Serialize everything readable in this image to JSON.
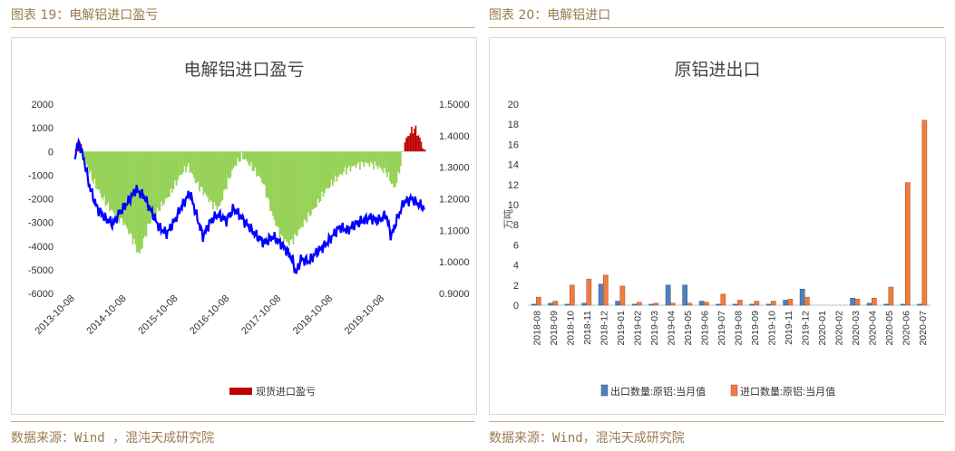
{
  "left": {
    "figure_title": "图表 19：电解铝进口盈亏",
    "source": "数据来源：Wind ，混沌天成研究院"
  },
  "right": {
    "figure_title": "图表 20：电解铝进口",
    "source": "数据来源：Wind，混沌天成研究院"
  },
  "colors": {
    "area_green": "#92d050",
    "area_red": "#c00000",
    "line_blue": "#0000ff",
    "export_blue": "#4f81bd",
    "import_orange": "#f07b3f",
    "header_gold": "#9a7b4f"
  },
  "chart_data": [
    {
      "type": "area",
      "title": "电解铝进口盈亏",
      "ylim": [
        -6000,
        2000
      ],
      "y_ticks": [
        "2000",
        "1000",
        "0",
        "-1000",
        "-2000",
        "-3000",
        "-4000",
        "-5000",
        "-6000"
      ],
      "y2lim": [
        0.9,
        1.5
      ],
      "y2_ticks": [
        "1.5000",
        "1.4000",
        "1.3000",
        "1.2000",
        "1.1000",
        "1.0000",
        "0.9000"
      ],
      "x_ticks": [
        "2013-10-08",
        "2014-10-08",
        "2015-10-08",
        "2016-10-08",
        "2017-10-08",
        "2018-10-08",
        "2019-10-08"
      ],
      "legend": [
        "现货进口盈亏"
      ],
      "legend_position": "bottom",
      "series": [
        {
          "name": "现货进口盈亏",
          "axis": "left",
          "t": [
            2013.77,
            2013.85,
            2013.95,
            2014.1,
            2014.3,
            2014.5,
            2014.7,
            2014.9,
            2015.0,
            2015.2,
            2015.4,
            2015.6,
            2015.8,
            2015.95,
            2016.1,
            2016.25,
            2016.4,
            2016.55,
            2016.7,
            2016.85,
            2017.0,
            2017.2,
            2017.4,
            2017.6,
            2017.75,
            2017.9,
            2018.0,
            2018.2,
            2018.4,
            2018.6,
            2018.8,
            2019.0,
            2019.2,
            2019.4,
            2019.6,
            2019.8,
            2019.95,
            2020.05,
            2020.15,
            2020.25,
            2020.35,
            2020.45,
            2020.55
          ],
          "values": [
            200,
            300,
            -400,
            -1200,
            -2000,
            -2600,
            -3000,
            -3800,
            -4400,
            -3000,
            -2400,
            -1800,
            -1000,
            -600,
            -1300,
            -1700,
            -2200,
            -2400,
            -1400,
            -600,
            -200,
            -700,
            -1300,
            -2800,
            -3600,
            -3900,
            -3700,
            -3000,
            -2400,
            -1700,
            -1200,
            -800,
            -600,
            -500,
            -600,
            -900,
            -1600,
            -800,
            400,
            800,
            1000,
            500,
            -100
          ]
        },
        {
          "name": "",
          "axis": "right",
          "t": [
            2013.77,
            2013.85,
            2013.95,
            2014.05,
            2014.2,
            2014.35,
            2014.5,
            2014.65,
            2014.8,
            2014.95,
            2015.1,
            2015.25,
            2015.4,
            2015.55,
            2015.7,
            2015.85,
            2016.0,
            2016.1,
            2016.25,
            2016.4,
            2016.55,
            2016.7,
            2016.85,
            2017.0,
            2017.15,
            2017.3,
            2017.45,
            2017.6,
            2017.75,
            2017.9,
            2018.0,
            2018.05,
            2018.15,
            2018.3,
            2018.45,
            2018.6,
            2018.75,
            2018.9,
            2019.05,
            2019.2,
            2019.35,
            2019.5,
            2019.65,
            2019.8,
            2019.9,
            2020.0,
            2020.15,
            2020.3,
            2020.45,
            2020.55
          ],
          "values": [
            1.34,
            1.38,
            1.32,
            1.24,
            1.17,
            1.14,
            1.12,
            1.16,
            1.19,
            1.23,
            1.21,
            1.16,
            1.11,
            1.09,
            1.13,
            1.18,
            1.22,
            1.16,
            1.08,
            1.13,
            1.15,
            1.13,
            1.17,
            1.14,
            1.11,
            1.08,
            1.06,
            1.08,
            1.06,
            1.03,
            1.0,
            0.96,
            1.01,
            1.0,
            1.03,
            1.05,
            1.08,
            1.11,
            1.1,
            1.12,
            1.13,
            1.14,
            1.13,
            1.15,
            1.08,
            1.13,
            1.19,
            1.2,
            1.18,
            1.17
          ]
        }
      ]
    },
    {
      "type": "bar",
      "title": "原铝进出口",
      "ylabel": "万吨",
      "ylim": [
        0,
        20
      ],
      "y_ticks": [
        "0",
        "2",
        "4",
        "6",
        "8",
        "10",
        "12",
        "14",
        "16",
        "18",
        "20"
      ],
      "categories": [
        "2018-08",
        "2018-09",
        "2018-10",
        "2018-11",
        "2018-12",
        "2019-01",
        "2019-02",
        "2019-03",
        "2019-04",
        "2019-05",
        "2019-06",
        "2019-07",
        "2019-08",
        "2019-09",
        "2019-10",
        "2019-11",
        "2019-12",
        "2020-01",
        "2020-02",
        "2020-03",
        "2020-04",
        "2020-05",
        "2020-06",
        "2020-07"
      ],
      "legend_position": "bottom",
      "series": [
        {
          "name": "出口数量:原铝:当月值",
          "values": [
            0.1,
            0.2,
            0.1,
            0.2,
            2.1,
            0.4,
            0.1,
            0.1,
            2.0,
            2.0,
            0.4,
            0.1,
            0.1,
            0.1,
            0.1,
            0.5,
            1.6,
            0,
            0,
            0.7,
            0.2,
            0.1,
            0.1,
            0.1
          ]
        },
        {
          "name": "进口数量:原铝:当月值",
          "values": [
            0.8,
            0.4,
            2.0,
            2.6,
            3.0,
            1.9,
            0.3,
            0.2,
            0.2,
            0.2,
            0.3,
            1.1,
            0.5,
            0.4,
            0.4,
            0.6,
            0.8,
            0,
            0,
            0.6,
            0.7,
            1.8,
            12.2,
            18.4
          ]
        }
      ]
    }
  ]
}
